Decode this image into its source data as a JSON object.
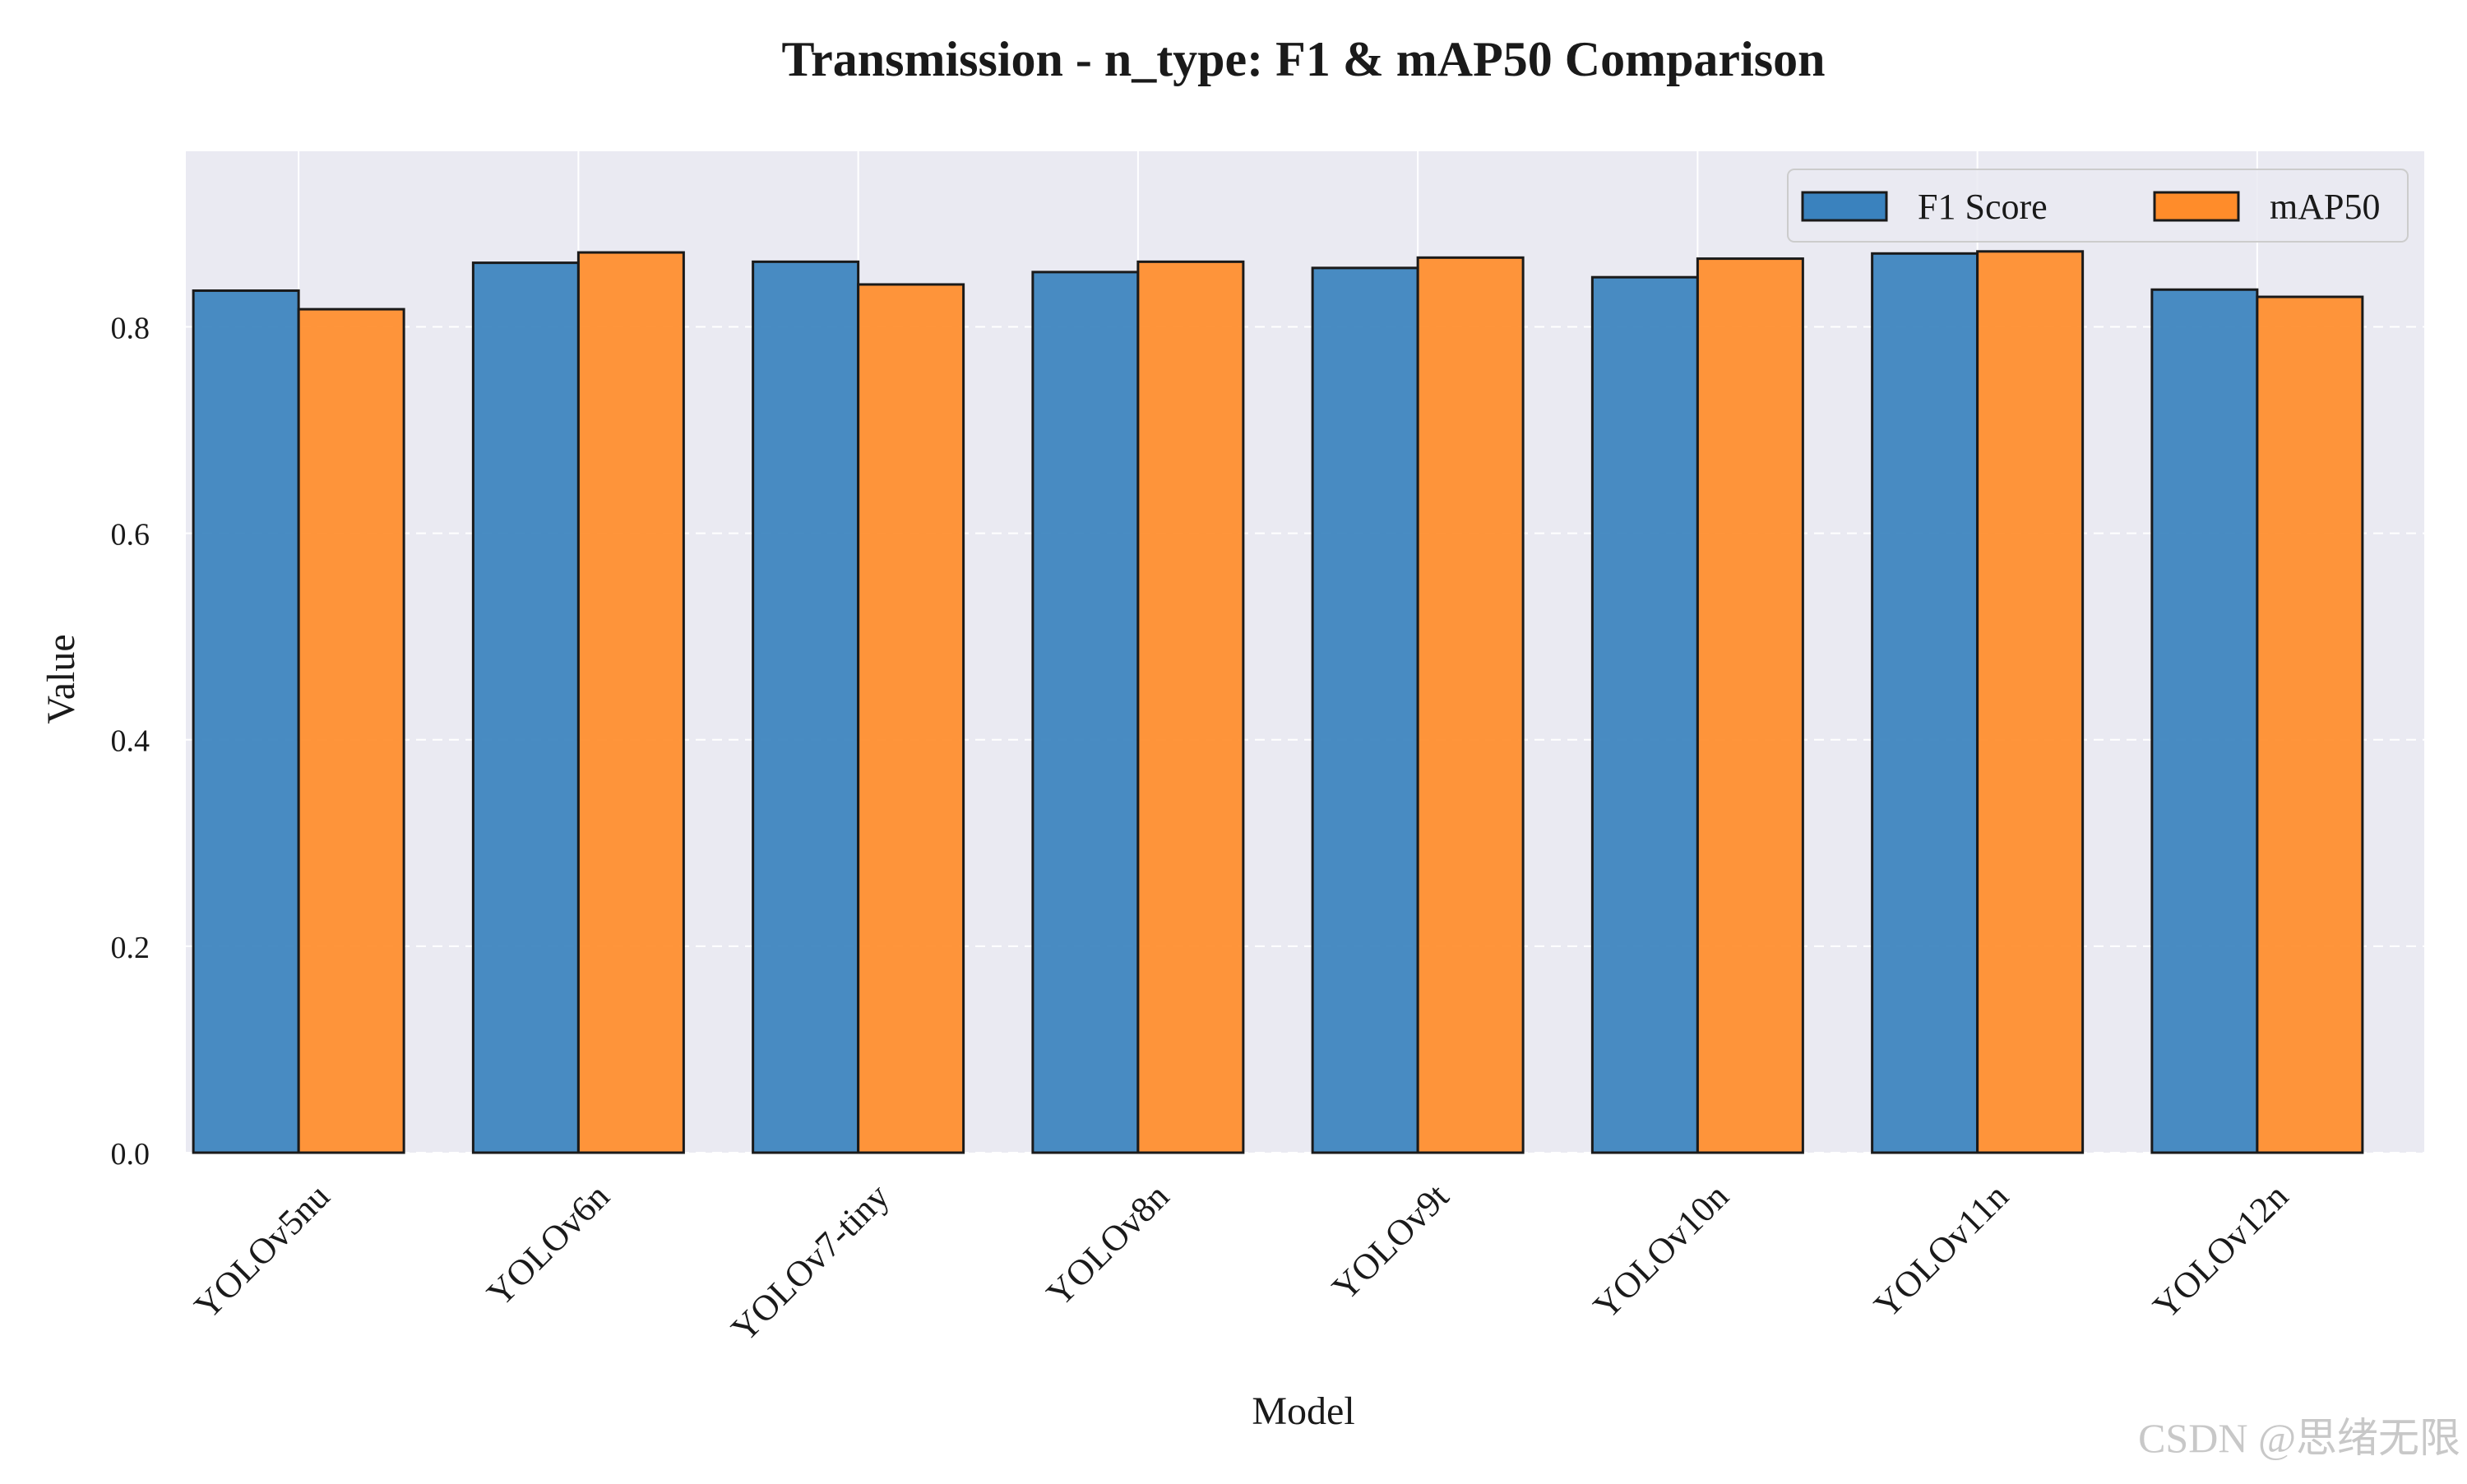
{
  "chart_data": {
    "type": "bar",
    "title": "Transmission - n_type: F1 & mAP50 Comparison",
    "xlabel": "Model",
    "ylabel": "Value",
    "categories": [
      "YOLOv5nu",
      "YOLOv6n",
      "YOLOv7-tiny",
      "YOLOv8n",
      "YOLOv9t",
      "YOLOv10n",
      "YOLOv11n",
      "YOLOv12n"
    ],
    "series": [
      {
        "name": "F1 Score",
        "color": "#3A82BE",
        "values": [
          0.835,
          0.862,
          0.863,
          0.853,
          0.857,
          0.848,
          0.871,
          0.836
        ]
      },
      {
        "name": "mAP50",
        "color": "#FF8C2A",
        "values": [
          0.817,
          0.872,
          0.841,
          0.863,
          0.867,
          0.866,
          0.873,
          0.829
        ]
      }
    ],
    "ylim": [
      0,
      0.97
    ],
    "yticks": [
      "0.0",
      "0.2",
      "0.4",
      "0.6",
      "0.8"
    ],
    "grid": true,
    "legend_position": "top-right",
    "colors": {
      "plot_background": "#EAEAF2",
      "grid": "#FFFFFF",
      "bar_edge": "#1A1A1A"
    }
  },
  "watermark": "CSDN @思绪无限"
}
